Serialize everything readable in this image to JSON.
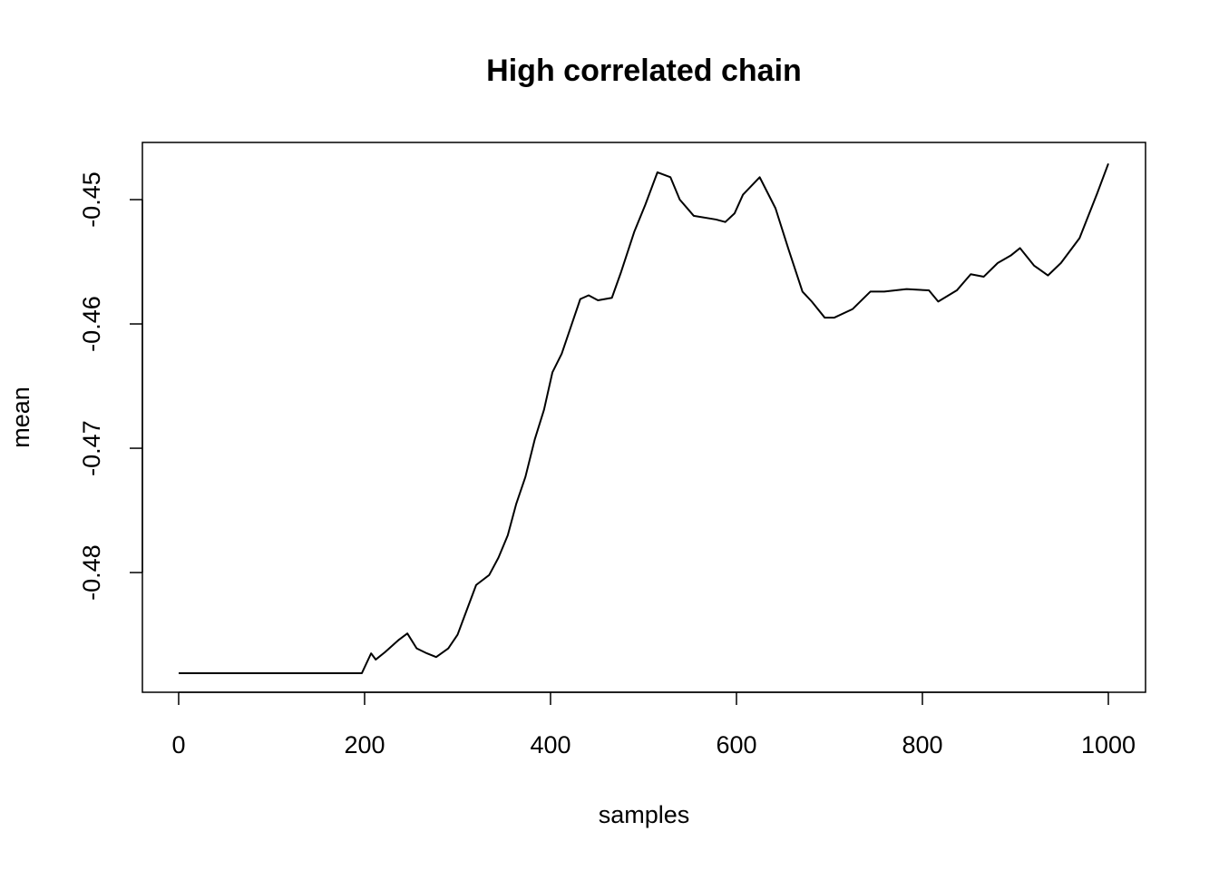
{
  "chart_data": {
    "type": "line",
    "title": "High correlated chain",
    "x_label": "samples",
    "y_label": "mean",
    "x": [
      0,
      197,
      207,
      212,
      222,
      237,
      246,
      256,
      267,
      277,
      290,
      300,
      310,
      320,
      334,
      344,
      354,
      363,
      373,
      383,
      393,
      402,
      412,
      422,
      432,
      441,
      451,
      466,
      476,
      490,
      502,
      515,
      529,
      539,
      554,
      578,
      588,
      598,
      607,
      625,
      642,
      656,
      671,
      681,
      695,
      705,
      725,
      744,
      759,
      783,
      807,
      817,
      837,
      852,
      866,
      881,
      895,
      905,
      920,
      935,
      949,
      969,
      988,
      1000
    ],
    "series": [
      {
        "color": "#000000",
        "values": [
          -0.4881,
          -0.4881,
          -0.4865,
          -0.487,
          -0.4864,
          -0.4854,
          -0.4849,
          -0.4861,
          -0.4865,
          -0.4868,
          -0.4861,
          -0.485,
          -0.483,
          -0.481,
          -0.4802,
          -0.4788,
          -0.477,
          -0.4745,
          -0.4723,
          -0.4693,
          -0.4669,
          -0.4639,
          -0.4624,
          -0.4602,
          -0.458,
          -0.4577,
          -0.4581,
          -0.4579,
          -0.4558,
          -0.4526,
          -0.4504,
          -0.4478,
          -0.4482,
          -0.45,
          -0.4513,
          -0.4516,
          -0.4518,
          -0.4511,
          -0.4496,
          -0.4482,
          -0.4507,
          -0.454,
          -0.4574,
          -0.4582,
          -0.4595,
          -0.4595,
          -0.4588,
          -0.4574,
          -0.4574,
          -0.4572,
          -0.4573,
          -0.4582,
          -0.4573,
          -0.456,
          -0.4562,
          -0.4551,
          -0.4545,
          -0.4539,
          -0.4553,
          -0.4561,
          -0.4551,
          -0.4531,
          -0.4495,
          -0.4471
        ]
      }
    ],
    "xlim": [
      -39,
      1040
    ],
    "ylim": [
      -0.48963,
      -0.4454
    ],
    "xticks": [
      0,
      200,
      400,
      600,
      800,
      1000
    ],
    "yticks": [
      -0.48,
      -0.47,
      -0.46,
      -0.45
    ]
  }
}
